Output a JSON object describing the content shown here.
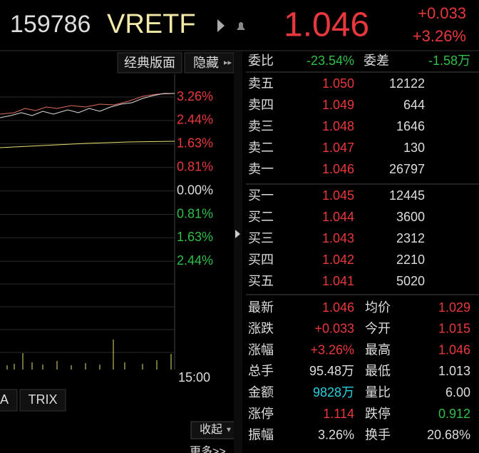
{
  "header": {
    "code": "159786",
    "name": "VRETF",
    "price": "1.046",
    "change": "+0.033",
    "change_pct": "+3.26%"
  },
  "toolbar": [
    "经典版面",
    "隐藏"
  ],
  "chart": {
    "axis_labels": [
      "3.26%",
      "2.44%",
      "1.63%",
      "0.81%",
      "0.00%",
      "0.81%",
      "1.63%",
      "2.44%"
    ],
    "time_label": "15:00",
    "tabs": [
      "A",
      "TRIX"
    ],
    "collapse": "收起",
    "more": "更多>>"
  },
  "order_book": {
    "ratio_label": "委比",
    "ratio": "-23.54%",
    "diff_label": "委差",
    "diff": "-1.58万",
    "asks": [
      [
        "卖五",
        "1.050",
        "12122"
      ],
      [
        "卖四",
        "1.049",
        "644"
      ],
      [
        "卖三",
        "1.048",
        "1646"
      ],
      [
        "卖二",
        "1.047",
        "130"
      ],
      [
        "卖一",
        "1.046",
        "26797"
      ]
    ],
    "bids": [
      [
        "买一",
        "1.045",
        "12445"
      ],
      [
        "买二",
        "1.044",
        "3600"
      ],
      [
        "买三",
        "1.043",
        "2312"
      ],
      [
        "买四",
        "1.042",
        "2210"
      ],
      [
        "买五",
        "1.041",
        "5020"
      ]
    ]
  },
  "stats": [
    [
      "最新",
      "1.046",
      "均价",
      "1.029"
    ],
    [
      "涨跌",
      "+0.033",
      "今开",
      "1.015"
    ],
    [
      "涨幅",
      "+3.26%",
      "最高",
      "1.046"
    ],
    [
      "总手",
      "95.48万",
      "最低",
      "1.013"
    ],
    [
      "金额",
      "9828万",
      "量比",
      "6.00"
    ],
    [
      "涨停",
      "1.114",
      "跌停",
      "0.912"
    ],
    [
      "振幅",
      "3.26%",
      "换手",
      "20.68%"
    ]
  ]
}
